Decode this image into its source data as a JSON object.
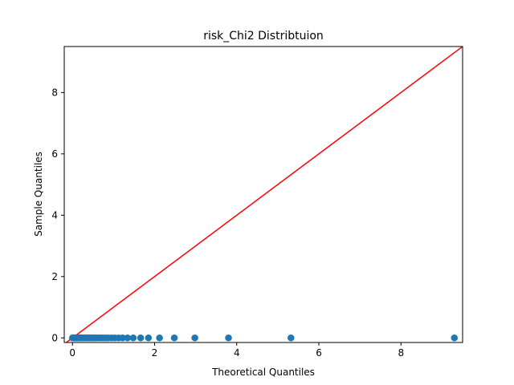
{
  "chart_data": {
    "type": "scatter",
    "title": "risk_Chi2 Distribtuion",
    "xlabel": "Theoretical Quantiles",
    "ylabel": "Sample Quantiles",
    "xlim": [
      -0.2,
      9.5
    ],
    "ylim": [
      -0.15,
      9.5
    ],
    "xticks": [
      0,
      2,
      4,
      6,
      8
    ],
    "yticks": [
      0,
      2,
      4,
      6,
      8
    ],
    "grid": false,
    "legend": "none",
    "series": [
      {
        "marker_color": "#1f77b4",
        "x": [
          0.0,
          0.02,
          0.04,
          0.06,
          0.08,
          0.1,
          0.12,
          0.14,
          0.16,
          0.18,
          0.2,
          0.22,
          0.25,
          0.28,
          0.31,
          0.34,
          0.37,
          0.4,
          0.44,
          0.48,
          0.52,
          0.57,
          0.62,
          0.68,
          0.74,
          0.8,
          0.87,
          0.95,
          1.03,
          1.12,
          1.22,
          1.34,
          1.48,
          1.66,
          1.85,
          2.12,
          2.48,
          2.98,
          3.8,
          5.32,
          9.3
        ],
        "y": [
          0,
          0,
          0,
          0,
          0,
          0,
          0,
          0,
          0,
          0,
          0,
          0,
          0,
          0,
          0,
          0,
          0,
          0,
          0,
          0,
          0,
          0,
          0,
          0,
          0,
          0,
          0,
          0,
          0,
          0,
          0,
          0,
          0,
          0,
          0,
          0,
          0,
          0,
          0,
          0,
          0
        ]
      }
    ],
    "reference_line": {
      "color": "#ff0000",
      "slope": 1,
      "intercept": 0
    }
  }
}
